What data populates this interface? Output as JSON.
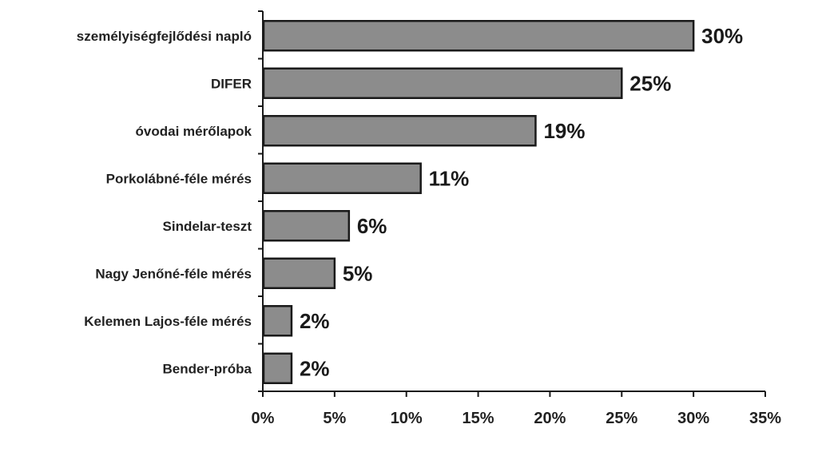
{
  "chart_data": {
    "type": "bar",
    "orientation": "horizontal",
    "title": "",
    "xlabel": "",
    "ylabel": "",
    "categories": [
      "személyiségfejlődési napló",
      "DIFER",
      "óvodai mérőlapok",
      "Porkolábné-féle mérés",
      "Sindelar-teszt",
      "Nagy Jenőné-féle mérés",
      "Kelemen Lajos-féle mérés",
      "Bender-próba"
    ],
    "values": [
      30,
      25,
      19,
      11,
      6,
      5,
      2,
      2
    ],
    "value_labels": [
      "30%",
      "25%",
      "19%",
      "11%",
      "6%",
      "5%",
      "2%",
      "2%"
    ],
    "xlim": [
      0,
      35
    ],
    "xticks": [
      0,
      5,
      10,
      15,
      20,
      25,
      30,
      35
    ],
    "xtick_labels": [
      "0%",
      "5%",
      "10%",
      "15%",
      "20%",
      "25%",
      "30%",
      "35%"
    ],
    "grid": false,
    "legend": "none",
    "colors": {
      "bar_fill": "#8c8c8c",
      "bar_stroke": "#1a1a1a",
      "text": "#222222"
    }
  }
}
